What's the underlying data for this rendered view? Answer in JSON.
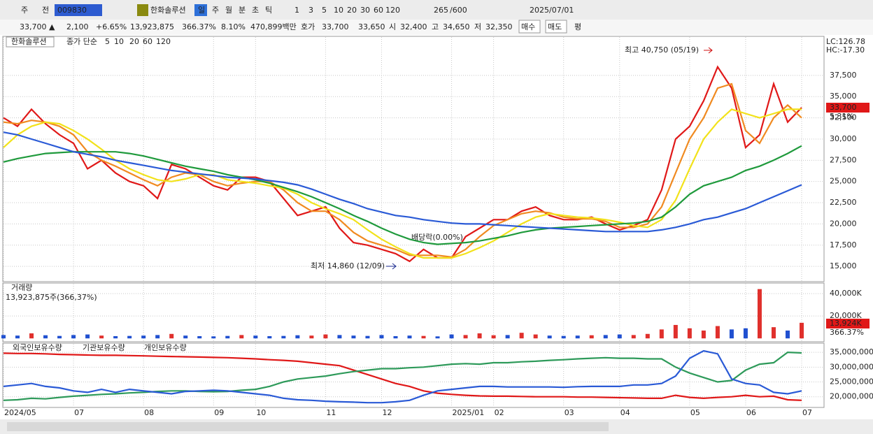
{
  "toolbar": {
    "items": [
      "주",
      "전",
      "009830",
      "한화솔루션",
      "일",
      "주",
      "월",
      "분",
      "초",
      "틱",
      "1",
      "3",
      "5",
      "10",
      "20",
      "30",
      "60",
      "120",
      "265",
      "/600",
      "2025/07/01"
    ]
  },
  "quote": {
    "items": [
      "33,700 ▲",
      "2,100",
      "+6.65%",
      "13,923,875",
      "366.37%",
      "8.10%",
      "470,899백만",
      "호가",
      "33,700",
      "33,650",
      "시",
      "32,400",
      "고",
      "34,650",
      "저",
      "32,350",
      "매수",
      "매도",
      "평"
    ]
  },
  "chart_data": [
    {
      "type": "line",
      "title": "한화솔루션",
      "legend_label": "종가 단순",
      "lc": "LC:126.78",
      "hc": "HC:-17.30",
      "last_label": "33,700",
      "last_change": "5.31%",
      "annotations": [
        "최고 40,750 (05/19)",
        "최저 14,860 (12/09)",
        "배당락(0.00%)"
      ],
      "categories": [
        "2024/05",
        null,
        null,
        null,
        null,
        "07",
        null,
        null,
        null,
        null,
        "08",
        null,
        null,
        null,
        null,
        "09",
        null,
        null,
        "10",
        null,
        null,
        null,
        null,
        "11",
        null,
        null,
        null,
        "12",
        null,
        null,
        null,
        null,
        "2025/01",
        null,
        null,
        "02",
        null,
        null,
        null,
        null,
        "03",
        null,
        null,
        null,
        "04",
        null,
        null,
        null,
        null,
        "05",
        null,
        null,
        null,
        "06",
        null,
        null,
        null,
        "07"
      ],
      "ylim": [
        13200,
        42100
      ],
      "yticks": [
        {
          "value": 15000,
          "label": "15,000"
        },
        {
          "value": 17500,
          "label": "17,500"
        },
        {
          "value": 20000,
          "label": "20,000"
        },
        {
          "value": 22500,
          "label": "22,500"
        },
        {
          "value": 25000,
          "label": "25,000"
        },
        {
          "value": 27500,
          "label": "27,500"
        },
        {
          "value": 30000,
          "label": "30,000"
        },
        {
          "value": 32500,
          "label": "32,500"
        },
        {
          "value": 35000,
          "label": "35,000"
        },
        {
          "value": 37500,
          "label": "37,500"
        }
      ],
      "grid": true,
      "series": [
        {
          "name": "5",
          "color": "#e01818",
          "values": [
            32500,
            31500,
            33500,
            31800,
            30500,
            29500,
            26500,
            27500,
            26000,
            25000,
            24500,
            23000,
            27000,
            26500,
            25500,
            24500,
            24000,
            25500,
            25500,
            25000,
            23000,
            21000,
            21500,
            22000,
            19500,
            17800,
            17500,
            17000,
            16500,
            15600,
            17000,
            16000,
            16000,
            18500,
            19500,
            20500,
            20500,
            21500,
            22000,
            21000,
            20500,
            20500,
            20800,
            20000,
            19300,
            19800,
            20500,
            24000,
            30000,
            31500,
            34500,
            38500,
            36000,
            29000,
            30500,
            36500,
            32000,
            33700
          ]
        },
        {
          "name": "10",
          "color": "#f08a20",
          "values": [
            32000,
            31800,
            32200,
            32000,
            31500,
            30500,
            28500,
            27500,
            26800,
            26000,
            25200,
            24500,
            25500,
            26000,
            25800,
            25000,
            24500,
            24800,
            25000,
            25000,
            24000,
            22500,
            21500,
            21500,
            20500,
            19000,
            18000,
            17500,
            17000,
            16300,
            16300,
            16300,
            16100,
            17000,
            18500,
            19800,
            20500,
            21200,
            21500,
            21300,
            20800,
            20600,
            20600,
            20300,
            19600,
            19600,
            20000,
            22000,
            26000,
            30000,
            32500,
            36000,
            36500,
            31000,
            29500,
            32500,
            34000,
            32500
          ]
        },
        {
          "name": "20",
          "color": "#f2e21a",
          "values": [
            29000,
            30500,
            31500,
            32000,
            31800,
            31000,
            30000,
            28800,
            27500,
            26500,
            25800,
            25200,
            25000,
            25300,
            25800,
            25800,
            25200,
            25000,
            24800,
            24500,
            24200,
            23500,
            22500,
            21800,
            21200,
            20500,
            19300,
            18200,
            17300,
            16500,
            16000,
            16000,
            16000,
            16500,
            17200,
            18000,
            19000,
            20000,
            20800,
            21200,
            21000,
            20800,
            20700,
            20500,
            20200,
            19800,
            19600,
            20500,
            22800,
            26500,
            30000,
            32000,
            33500,
            33000,
            32500,
            33000,
            33500,
            33500
          ]
        },
        {
          "name": "60",
          "color": "#1f9a3c",
          "values": [
            27300,
            27700,
            28000,
            28300,
            28400,
            28500,
            28500,
            28500,
            28500,
            28300,
            28000,
            27600,
            27200,
            26800,
            26500,
            26200,
            25800,
            25500,
            25200,
            24800,
            24300,
            23800,
            23200,
            22500,
            21800,
            21000,
            20300,
            19500,
            18800,
            18200,
            17800,
            17600,
            17700,
            17800,
            18000,
            18300,
            18600,
            19000,
            19300,
            19500,
            19600,
            19700,
            19800,
            19900,
            20000,
            20100,
            20300,
            20800,
            22000,
            23500,
            24500,
            25000,
            25500,
            26300,
            26800,
            27500,
            28300,
            29200
          ]
        },
        {
          "name": "120",
          "color": "#2a5ad6",
          "values": [
            30800,
            30500,
            30000,
            29500,
            29000,
            28500,
            28200,
            27900,
            27500,
            27200,
            26900,
            26600,
            26300,
            26100,
            25900,
            25700,
            25500,
            25400,
            25300,
            25100,
            24900,
            24600,
            24100,
            23500,
            22900,
            22400,
            21800,
            21400,
            21000,
            20800,
            20500,
            20300,
            20100,
            20000,
            20000,
            19900,
            19800,
            19700,
            19600,
            19500,
            19400,
            19300,
            19200,
            19100,
            19100,
            19100,
            19100,
            19300,
            19600,
            20000,
            20500,
            20800,
            21300,
            21800,
            22500,
            23200,
            23900,
            24600
          ]
        }
      ]
    },
    {
      "type": "bar",
      "title": "거래량",
      "subtitle": "13,923,875주(366,37%)",
      "last_label": "13,924K",
      "last_change": "366.37%",
      "ylim": [
        -3000,
        49400
      ],
      "yticks": [
        {
          "value": 20000,
          "label": "20,000K"
        },
        {
          "value": 40000,
          "label": "40,000K"
        }
      ],
      "grid": true,
      "values": [
        3000,
        2500,
        4500,
        2800,
        2200,
        3000,
        3500,
        2500,
        2000,
        2200,
        2500,
        3000,
        4000,
        2500,
        2000,
        1800,
        2200,
        3000,
        2500,
        2000,
        2200,
        2800,
        2500,
        3500,
        3000,
        2500,
        2200,
        3000,
        2000,
        2500,
        2200,
        1800,
        3500,
        3000,
        4500,
        2800,
        3000,
        5000,
        3500,
        2500,
        2200,
        2500,
        2800,
        3000,
        3500,
        3000,
        4000,
        8000,
        12000,
        9000,
        7000,
        11000,
        8000,
        9000,
        44000,
        10000,
        7000,
        13924
      ],
      "colors": [
        "#2050d0",
        "#2050d0",
        "#e0302c",
        "#2050d0",
        "#2050d0",
        "#2050d0",
        "#2050d0",
        "#e0302c",
        "#2050d0",
        "#2050d0",
        "#2050d0",
        "#2050d0",
        "#e0302c",
        "#2050d0",
        "#2050d0",
        "#2050d0",
        "#2050d0",
        "#e0302c",
        "#2050d0",
        "#2050d0",
        "#2050d0",
        "#2050d0",
        "#e0302c",
        "#e0302c",
        "#2050d0",
        "#2050d0",
        "#2050d0",
        "#2050d0",
        "#2050d0",
        "#2050d0",
        "#e0302c",
        "#2050d0",
        "#2050d0",
        "#e0302c",
        "#e0302c",
        "#e0302c",
        "#2050d0",
        "#e0302c",
        "#e0302c",
        "#2050d0",
        "#2050d0",
        "#2050d0",
        "#e0302c",
        "#2050d0",
        "#2050d0",
        "#e0302c",
        "#e0302c",
        "#e0302c",
        "#e0302c",
        "#e0302c",
        "#e0302c",
        "#e0302c",
        "#2050d0",
        "#2050d0",
        "#e0302c",
        "#e0302c",
        "#2050d0",
        "#e0302c"
      ]
    },
    {
      "type": "line",
      "ylim": [
        16400000,
        38100000
      ],
      "yticks": [
        {
          "value": 20000000,
          "label": "20,000,000"
        },
        {
          "value": 25000000,
          "label": "25,000,000"
        },
        {
          "value": 30000000,
          "label": "30,000,000"
        },
        {
          "value": 35000000,
          "label": "35,000,000"
        }
      ],
      "grid": true,
      "series": [
        {
          "name": "외국인보유수량",
          "color": "#e01818",
          "values": [
            34700000,
            34600000,
            34600000,
            34500000,
            34300000,
            34200000,
            34100000,
            34000000,
            34000000,
            33900000,
            33800000,
            33700000,
            33600000,
            33500000,
            33400000,
            33300000,
            33200000,
            33000000,
            32800000,
            32500000,
            32300000,
            32000000,
            31500000,
            31000000,
            30500000,
            29000000,
            27500000,
            26000000,
            24500000,
            23500000,
            22000000,
            21200000,
            20800000,
            20500000,
            20300000,
            20200000,
            20200000,
            20100000,
            20000000,
            20000000,
            20000000,
            19900000,
            19900000,
            19800000,
            19700000,
            19600000,
            19500000,
            19500000,
            20500000,
            19800000,
            19500000,
            19800000,
            20000000,
            20500000,
            20000000,
            20200000,
            19000000,
            18800000
          ]
        },
        {
          "name": "기관보유수량",
          "color": "#2e9a5a",
          "values": [
            18800000,
            19000000,
            19500000,
            19300000,
            19800000,
            20200000,
            20500000,
            20800000,
            21000000,
            21300000,
            21500000,
            21800000,
            22000000,
            22000000,
            21800000,
            21700000,
            21800000,
            22200000,
            22500000,
            23500000,
            25000000,
            26000000,
            26500000,
            27000000,
            27800000,
            28500000,
            29000000,
            29500000,
            29500000,
            29800000,
            30000000,
            30500000,
            31000000,
            31200000,
            31000000,
            31500000,
            31500000,
            31800000,
            32000000,
            32300000,
            32500000,
            32800000,
            33000000,
            33200000,
            33000000,
            33000000,
            32800000,
            32800000,
            30000000,
            28000000,
            26500000,
            25000000,
            25500000,
            29000000,
            31000000,
            31500000,
            35000000,
            34800000
          ]
        },
        {
          "name": "개인보유수량",
          "color": "#2a5ad6",
          "values": [
            23500000,
            24000000,
            24500000,
            23500000,
            23000000,
            22000000,
            21500000,
            22500000,
            21500000,
            22500000,
            22000000,
            21500000,
            21000000,
            21800000,
            22000000,
            22200000,
            22000000,
            21500000,
            21000000,
            20500000,
            19500000,
            19000000,
            18800000,
            18500000,
            18300000,
            18200000,
            18000000,
            18000000,
            18300000,
            18800000,
            20500000,
            22000000,
            22500000,
            23000000,
            23500000,
            23500000,
            23300000,
            23300000,
            23300000,
            23300000,
            23200000,
            23400000,
            23500000,
            23500000,
            23500000,
            24000000,
            24000000,
            24500000,
            27000000,
            33000000,
            35500000,
            34500000,
            26000000,
            24500000,
            24000000,
            21500000,
            21000000,
            22000000
          ]
        }
      ]
    }
  ]
}
